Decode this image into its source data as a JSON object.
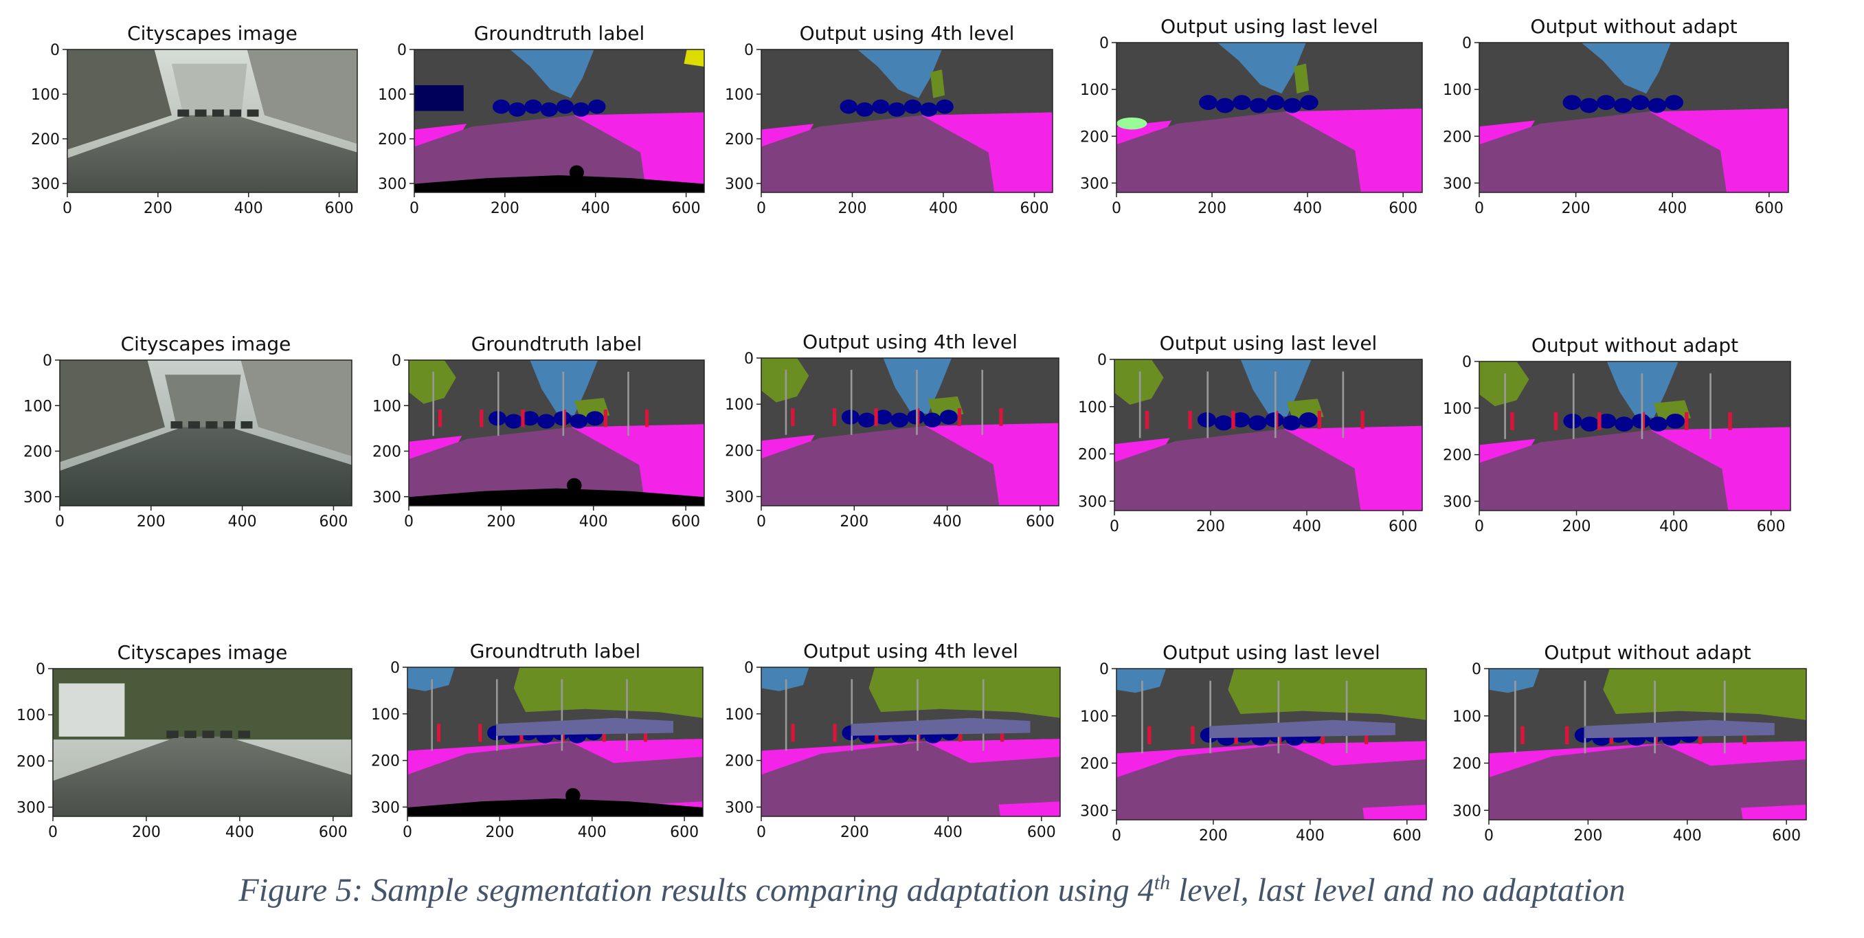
{
  "figure": {
    "caption_prefix": "Figure 5: Sample segmentation results comparing adaptation using 4",
    "caption_sup": "th",
    "caption_suffix": " level, last level and no adaptation",
    "x_ticks": [
      0,
      200,
      400,
      600
    ],
    "y_ticks": [
      0,
      100,
      200,
      300
    ],
    "image_size": {
      "width_units": 640,
      "height_units": 320
    },
    "label_colors": {
      "road": "#804080",
      "sidewalk": "#f423e8",
      "building": "#464646",
      "vegetation": "#6b8e23",
      "sky": "#4682b4",
      "car": "#00008e",
      "person": "#dc143c",
      "pole": "#999999",
      "traffic_sign": "#dcdc00",
      "terrain": "#98fb98",
      "fence": "#be9999",
      "wall": "#66669c",
      "ego_vehicle": "#000000"
    },
    "rows": [
      {
        "panels": [
          {
            "title": "Cityscapes image"
          },
          {
            "title": "Groundtruth label"
          },
          {
            "title": "Output using 4th level"
          },
          {
            "title": "Output using last level"
          },
          {
            "title": "Output without adapt"
          }
        ]
      },
      {
        "panels": [
          {
            "title": "Cityscapes image"
          },
          {
            "title": "Groundtruth label"
          },
          {
            "title": "Output using 4th level"
          },
          {
            "title": "Output using last level"
          },
          {
            "title": "Output without adapt"
          }
        ]
      },
      {
        "panels": [
          {
            "title": "Cityscapes image"
          },
          {
            "title": "Groundtruth label"
          },
          {
            "title": "Output using 4th level"
          },
          {
            "title": "Output using last level"
          },
          {
            "title": "Output without adapt"
          }
        ]
      }
    ]
  }
}
